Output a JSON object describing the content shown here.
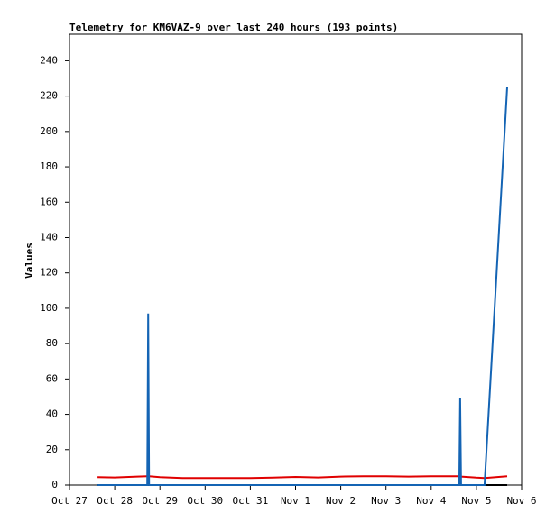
{
  "chart_data": {
    "type": "line",
    "title": "Telemetry for KM6VAZ-9 over last 240 hours (193 points)",
    "y_label": "Values",
    "x": [
      0.62,
      1.0,
      1.5,
      1.72,
      1.74,
      1.76,
      2.0,
      2.5,
      3.0,
      3.5,
      4.0,
      4.5,
      5.0,
      5.5,
      6.0,
      6.5,
      7.0,
      7.5,
      8.0,
      8.62,
      8.64,
      8.66,
      9.0,
      9.18,
      9.68
    ],
    "series": [
      {
        "color": "#000000",
        "values": [
          0,
          0,
          0,
          0,
          0,
          0,
          0,
          0,
          0,
          0,
          0,
          0,
          0,
          0,
          0,
          0,
          0,
          0,
          0,
          0,
          0,
          0,
          0,
          0,
          0
        ]
      },
      {
        "color": "#e00000",
        "values": [
          4.5,
          4.3,
          4.8,
          5,
          5,
          5,
          4.5,
          4,
          4,
          4,
          4,
          4.2,
          4.6,
          4.3,
          4.8,
          5,
          5,
          4.8,
          5,
          5,
          5,
          4.8,
          4.2,
          4,
          5
        ]
      },
      {
        "color": "#1464b4",
        "values": [
          0,
          0,
          0,
          0,
          97,
          0,
          0,
          0,
          0,
          0,
          0,
          0,
          0,
          0,
          0,
          0,
          0,
          0,
          0,
          0,
          49,
          0,
          0,
          0,
          225
        ]
      }
    ],
    "xlim": [
      0,
      10
    ],
    "xticks": [
      {
        "value": 0,
        "label": "Oct 27"
      },
      {
        "value": 1,
        "label": "Oct 28"
      },
      {
        "value": 2,
        "label": "Oct 29"
      },
      {
        "value": 3,
        "label": "Oct 30"
      },
      {
        "value": 4,
        "label": "Oct 31"
      },
      {
        "value": 5,
        "label": "Nov 1"
      },
      {
        "value": 6,
        "label": "Nov 2"
      },
      {
        "value": 7,
        "label": "Nov 3"
      },
      {
        "value": 8,
        "label": "Nov 4"
      },
      {
        "value": 9,
        "label": "Nov 5"
      },
      {
        "value": 10,
        "label": "Nov 6"
      }
    ],
    "ylim": [
      0,
      255
    ],
    "yticks": [
      0,
      20,
      40,
      60,
      80,
      100,
      120,
      140,
      160,
      180,
      200,
      220,
      240
    ]
  }
}
